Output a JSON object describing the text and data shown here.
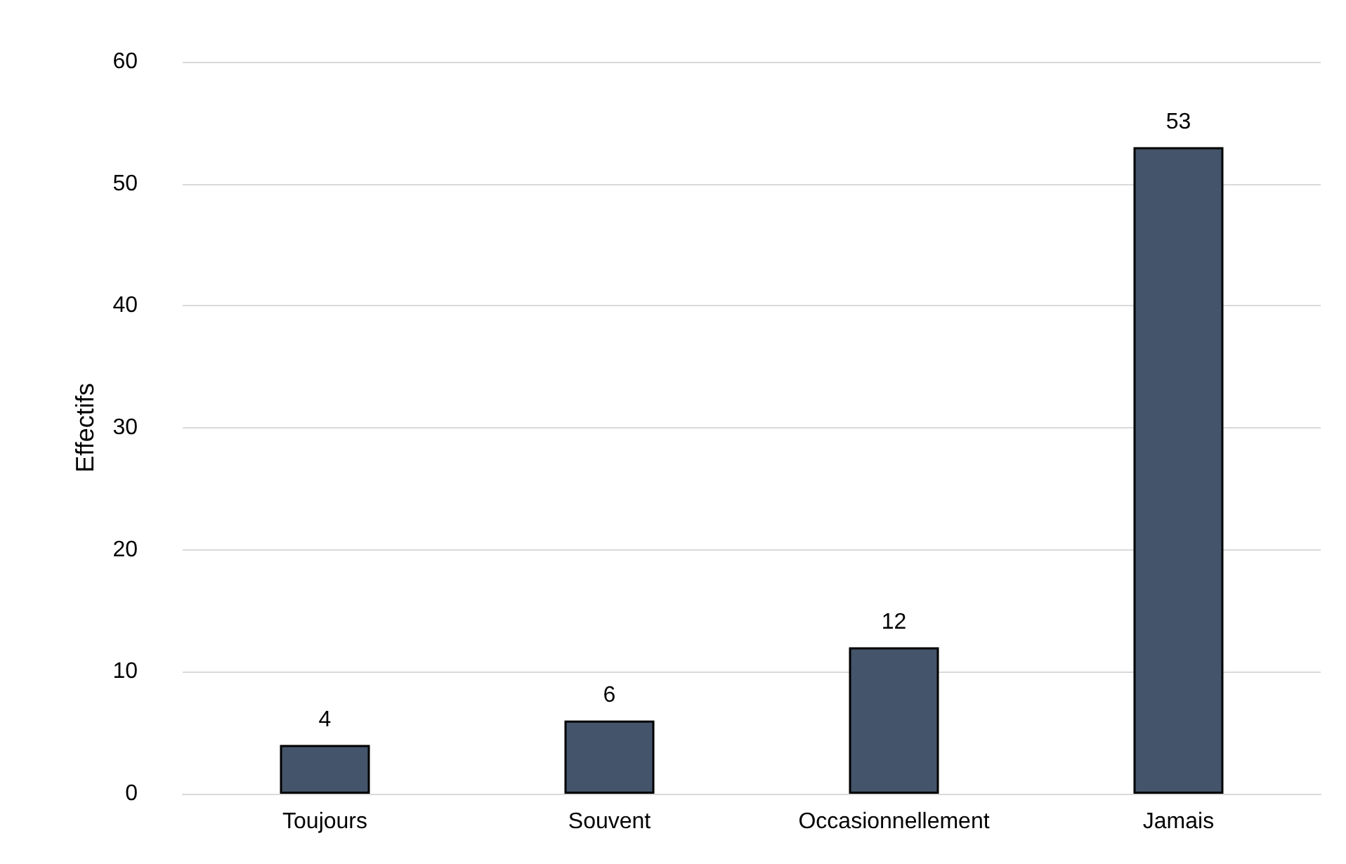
{
  "chart_data": {
    "type": "bar",
    "ylabel": "Effectifs",
    "categories": [
      "Toujours",
      "Souvent",
      "Occasionnellement",
      "Jamais"
    ],
    "values": [
      4,
      6,
      12,
      53
    ],
    "color": "#44546a",
    "data_labels": true,
    "ylim": [
      0,
      60
    ],
    "yticks": [
      0,
      10,
      20,
      30,
      40,
      50,
      60
    ],
    "grid": "y"
  }
}
